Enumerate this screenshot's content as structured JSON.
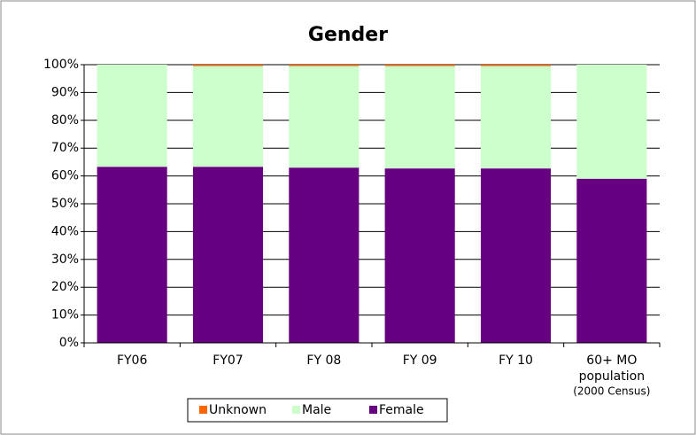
{
  "chart_data": {
    "type": "stacked_bar",
    "title": "Gender",
    "categories": [
      [
        "FY06"
      ],
      [
        "FY07"
      ],
      [
        "FY 08"
      ],
      [
        "FY 09"
      ],
      [
        "FY 10"
      ],
      [
        "60+ MO",
        "population",
        "(2000 Census)"
      ]
    ],
    "series": [
      {
        "name": "Unknown",
        "color": "#ff6600",
        "values": [
          0,
          0.5,
          0.5,
          0.5,
          0.5,
          0
        ]
      },
      {
        "name": "Male",
        "color": "#ccffcc",
        "values": [
          36.7,
          36.2,
          36.5,
          36.8,
          36.8,
          41
        ]
      },
      {
        "name": "Female",
        "color": "#660080",
        "values": [
          63.3,
          63.3,
          63,
          62.7,
          62.7,
          59
        ]
      }
    ],
    "ylim": [
      0,
      100
    ],
    "yticks": [
      {
        "value": 0,
        "label": "0%"
      },
      {
        "value": 10,
        "label": "10%"
      },
      {
        "value": 20,
        "label": "20%"
      },
      {
        "value": 30,
        "label": "30%"
      },
      {
        "value": 40,
        "label": "40%"
      },
      {
        "value": 50,
        "label": "50%"
      },
      {
        "value": 60,
        "label": "60%"
      },
      {
        "value": 70,
        "label": "70%"
      },
      {
        "value": 80,
        "label": "80%"
      },
      {
        "value": 90,
        "label": "90%"
      },
      {
        "value": 100,
        "label": "100%"
      }
    ],
    "grid": true,
    "legend": "bottom"
  }
}
